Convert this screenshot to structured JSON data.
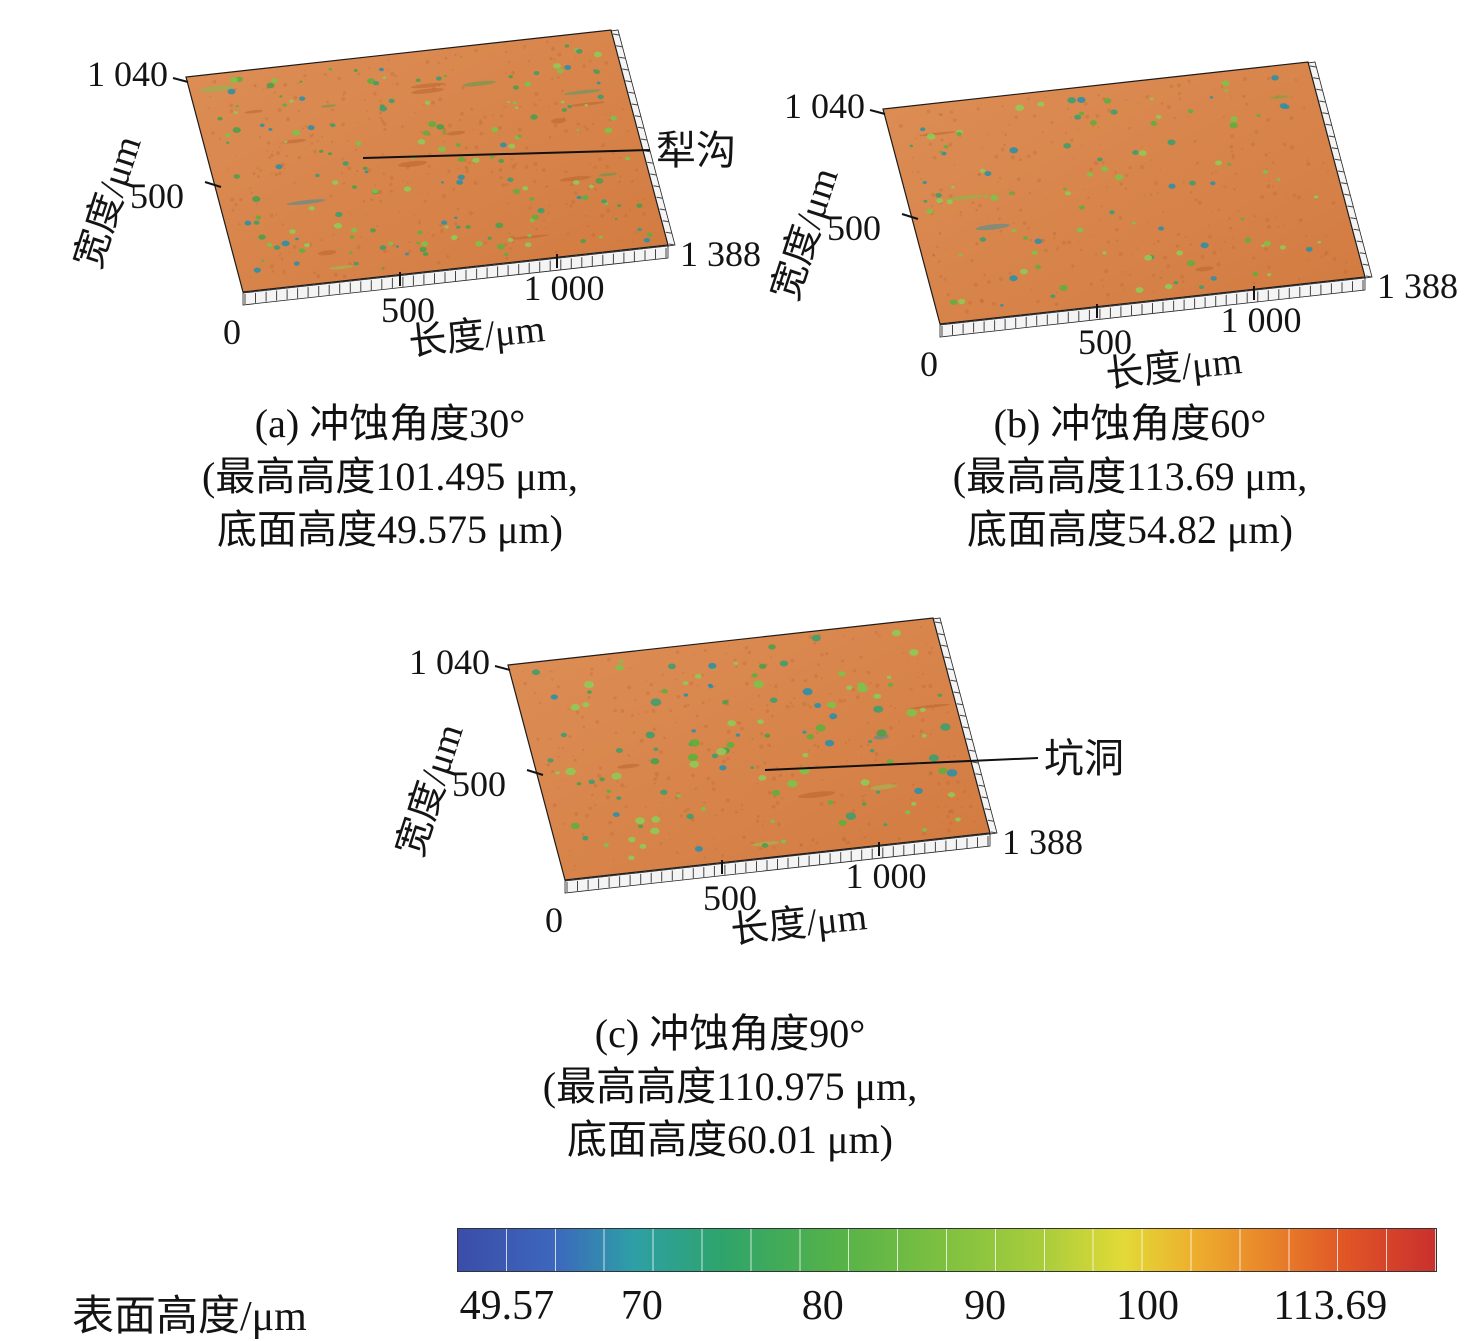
{
  "panels": [
    {
      "id": "a",
      "caption": {
        "line1": "(a) 冲蚀角度30°",
        "line2": "(最高高度101.495 μm,",
        "line3": "底面高度49.575 μm)"
      },
      "annotation": "犁沟",
      "axes": {
        "width_label": "宽度/μm",
        "length_label": "长度/μm",
        "width_tick_max": "1 040",
        "width_tick_mid": "500",
        "origin_tick": "0",
        "length_tick_1": "500",
        "length_tick_2": "1 000",
        "length_tick_max": "1 388"
      },
      "surface": {
        "seed": 11,
        "speckle_count": 165,
        "streak_count": 18,
        "min_r": 1.4,
        "max_r": 4.2,
        "texture_count": 380,
        "texture_color": "#b5622c",
        "palette": [
          "#5fae3c",
          "#7cc24a",
          "#3f9d6e",
          "#2f8fa6",
          "#8fca56",
          "#4c9e4c"
        ]
      }
    },
    {
      "id": "b",
      "caption": {
        "line1": "(b) 冲蚀角度60°",
        "line2": "(最高高度113.69 μm,",
        "line3": "底面高度54.82 μm)"
      },
      "annotation": null,
      "axes": {
        "width_label": "宽度/μm",
        "length_label": "长度/μm",
        "width_tick_max": "1 040",
        "width_tick_mid": "500",
        "origin_tick": "0",
        "length_tick_1": "500",
        "length_tick_2": "1 000",
        "length_tick_max": "1 388"
      },
      "surface": {
        "seed": 23,
        "speckle_count": 100,
        "streak_count": 5,
        "min_r": 1.6,
        "max_r": 4.4,
        "texture_count": 300,
        "texture_color": "#b5622c",
        "palette": [
          "#5fae3c",
          "#7cc24a",
          "#3f9d6e",
          "#2f8fa6",
          "#8fca56"
        ]
      }
    },
    {
      "id": "c",
      "caption": {
        "line1": "(c) 冲蚀角度90°",
        "line2": "(最高高度110.975 μm,",
        "line3": "底面高度60.01 μm)"
      },
      "annotation": "坑洞",
      "axes": {
        "width_label": "宽度/μm",
        "length_label": "长度/μm",
        "width_tick_max": "1 040",
        "width_tick_mid": "500",
        "origin_tick": "0",
        "length_tick_1": "500",
        "length_tick_2": "1 000",
        "length_tick_max": "1 388"
      },
      "surface": {
        "seed": 37,
        "speckle_count": 125,
        "streak_count": 6,
        "min_r": 1.8,
        "max_r": 5.4,
        "texture_count": 340,
        "texture_color": "#b5622c",
        "palette": [
          "#5fae3c",
          "#7cc24a",
          "#3f9d6e",
          "#2f8fa6",
          "#8fca56",
          "#4c9e4c"
        ]
      }
    }
  ],
  "colorbar": {
    "label": "表面高度/μm",
    "ticks": [
      "49.57",
      "70",
      "80",
      "90",
      "100",
      "113.69"
    ]
  },
  "chart_data": [
    {
      "type": "surface",
      "title": "(a) 冲蚀角度30°",
      "erosion_angle_deg": 30,
      "xlabel": "长度/μm",
      "ylabel": "宽度/μm",
      "zlabel": "表面高度/μm",
      "x_range": [
        0,
        1388
      ],
      "y_range": [
        0,
        1040
      ],
      "x_ticks": [
        0,
        500,
        1000,
        1388
      ],
      "y_ticks": [
        0,
        500,
        1040
      ],
      "max_height_um": 101.495,
      "base_height_um": 49.575,
      "annotation": "犁沟"
    },
    {
      "type": "surface",
      "title": "(b) 冲蚀角度60°",
      "erosion_angle_deg": 60,
      "xlabel": "长度/μm",
      "ylabel": "宽度/μm",
      "zlabel": "表面高度/μm",
      "x_range": [
        0,
        1388
      ],
      "y_range": [
        0,
        1040
      ],
      "x_ticks": [
        0,
        500,
        1000,
        1388
      ],
      "y_ticks": [
        0,
        500,
        1040
      ],
      "max_height_um": 113.69,
      "base_height_um": 54.82,
      "annotation": null
    },
    {
      "type": "surface",
      "title": "(c) 冲蚀角度90°",
      "erosion_angle_deg": 90,
      "xlabel": "长度/μm",
      "ylabel": "宽度/μm",
      "zlabel": "表面高度/μm",
      "x_range": [
        0,
        1388
      ],
      "y_range": [
        0,
        1040
      ],
      "x_ticks": [
        0,
        500,
        1000,
        1388
      ],
      "y_ticks": [
        0,
        500,
        1040
      ],
      "max_height_um": 110.975,
      "base_height_um": 60.01,
      "annotation": "坑洞"
    },
    {
      "type": "colorbar",
      "label": "表面高度/μm",
      "orientation": "horizontal",
      "range": [
        49.57,
        113.69
      ],
      "ticks": [
        49.57,
        70,
        80,
        90,
        100,
        113.69
      ],
      "colormap": "rainbow blue→teal→green→yellow→orange→red"
    }
  ]
}
